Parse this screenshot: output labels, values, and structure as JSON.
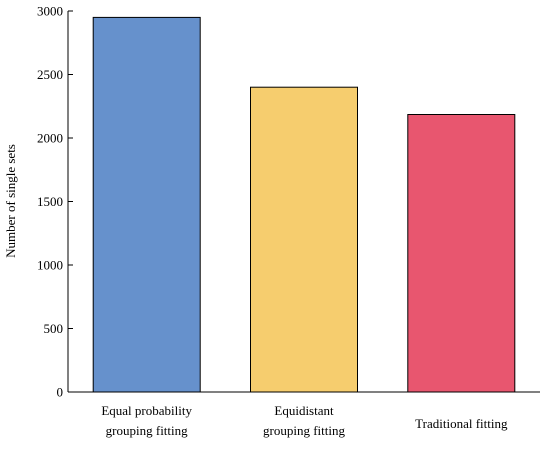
{
  "chart_data": {
    "type": "bar",
    "title": "",
    "xlabel": "",
    "ylabel": "Number of single sets",
    "categories": [
      [
        "Equal probability",
        "grouping fitting"
      ],
      [
        "Equidistant",
        "grouping fitting"
      ],
      [
        "Traditional fitting"
      ]
    ],
    "values": [
      2950,
      2400,
      2185
    ],
    "bar_colors": [
      "#6691cc",
      "#f6cd6e",
      "#e8566f"
    ],
    "ylim": [
      0,
      3000
    ],
    "yticks": [
      0,
      500,
      1000,
      1500,
      2000,
      2500,
      3000
    ],
    "grid": false,
    "legend": "none"
  }
}
